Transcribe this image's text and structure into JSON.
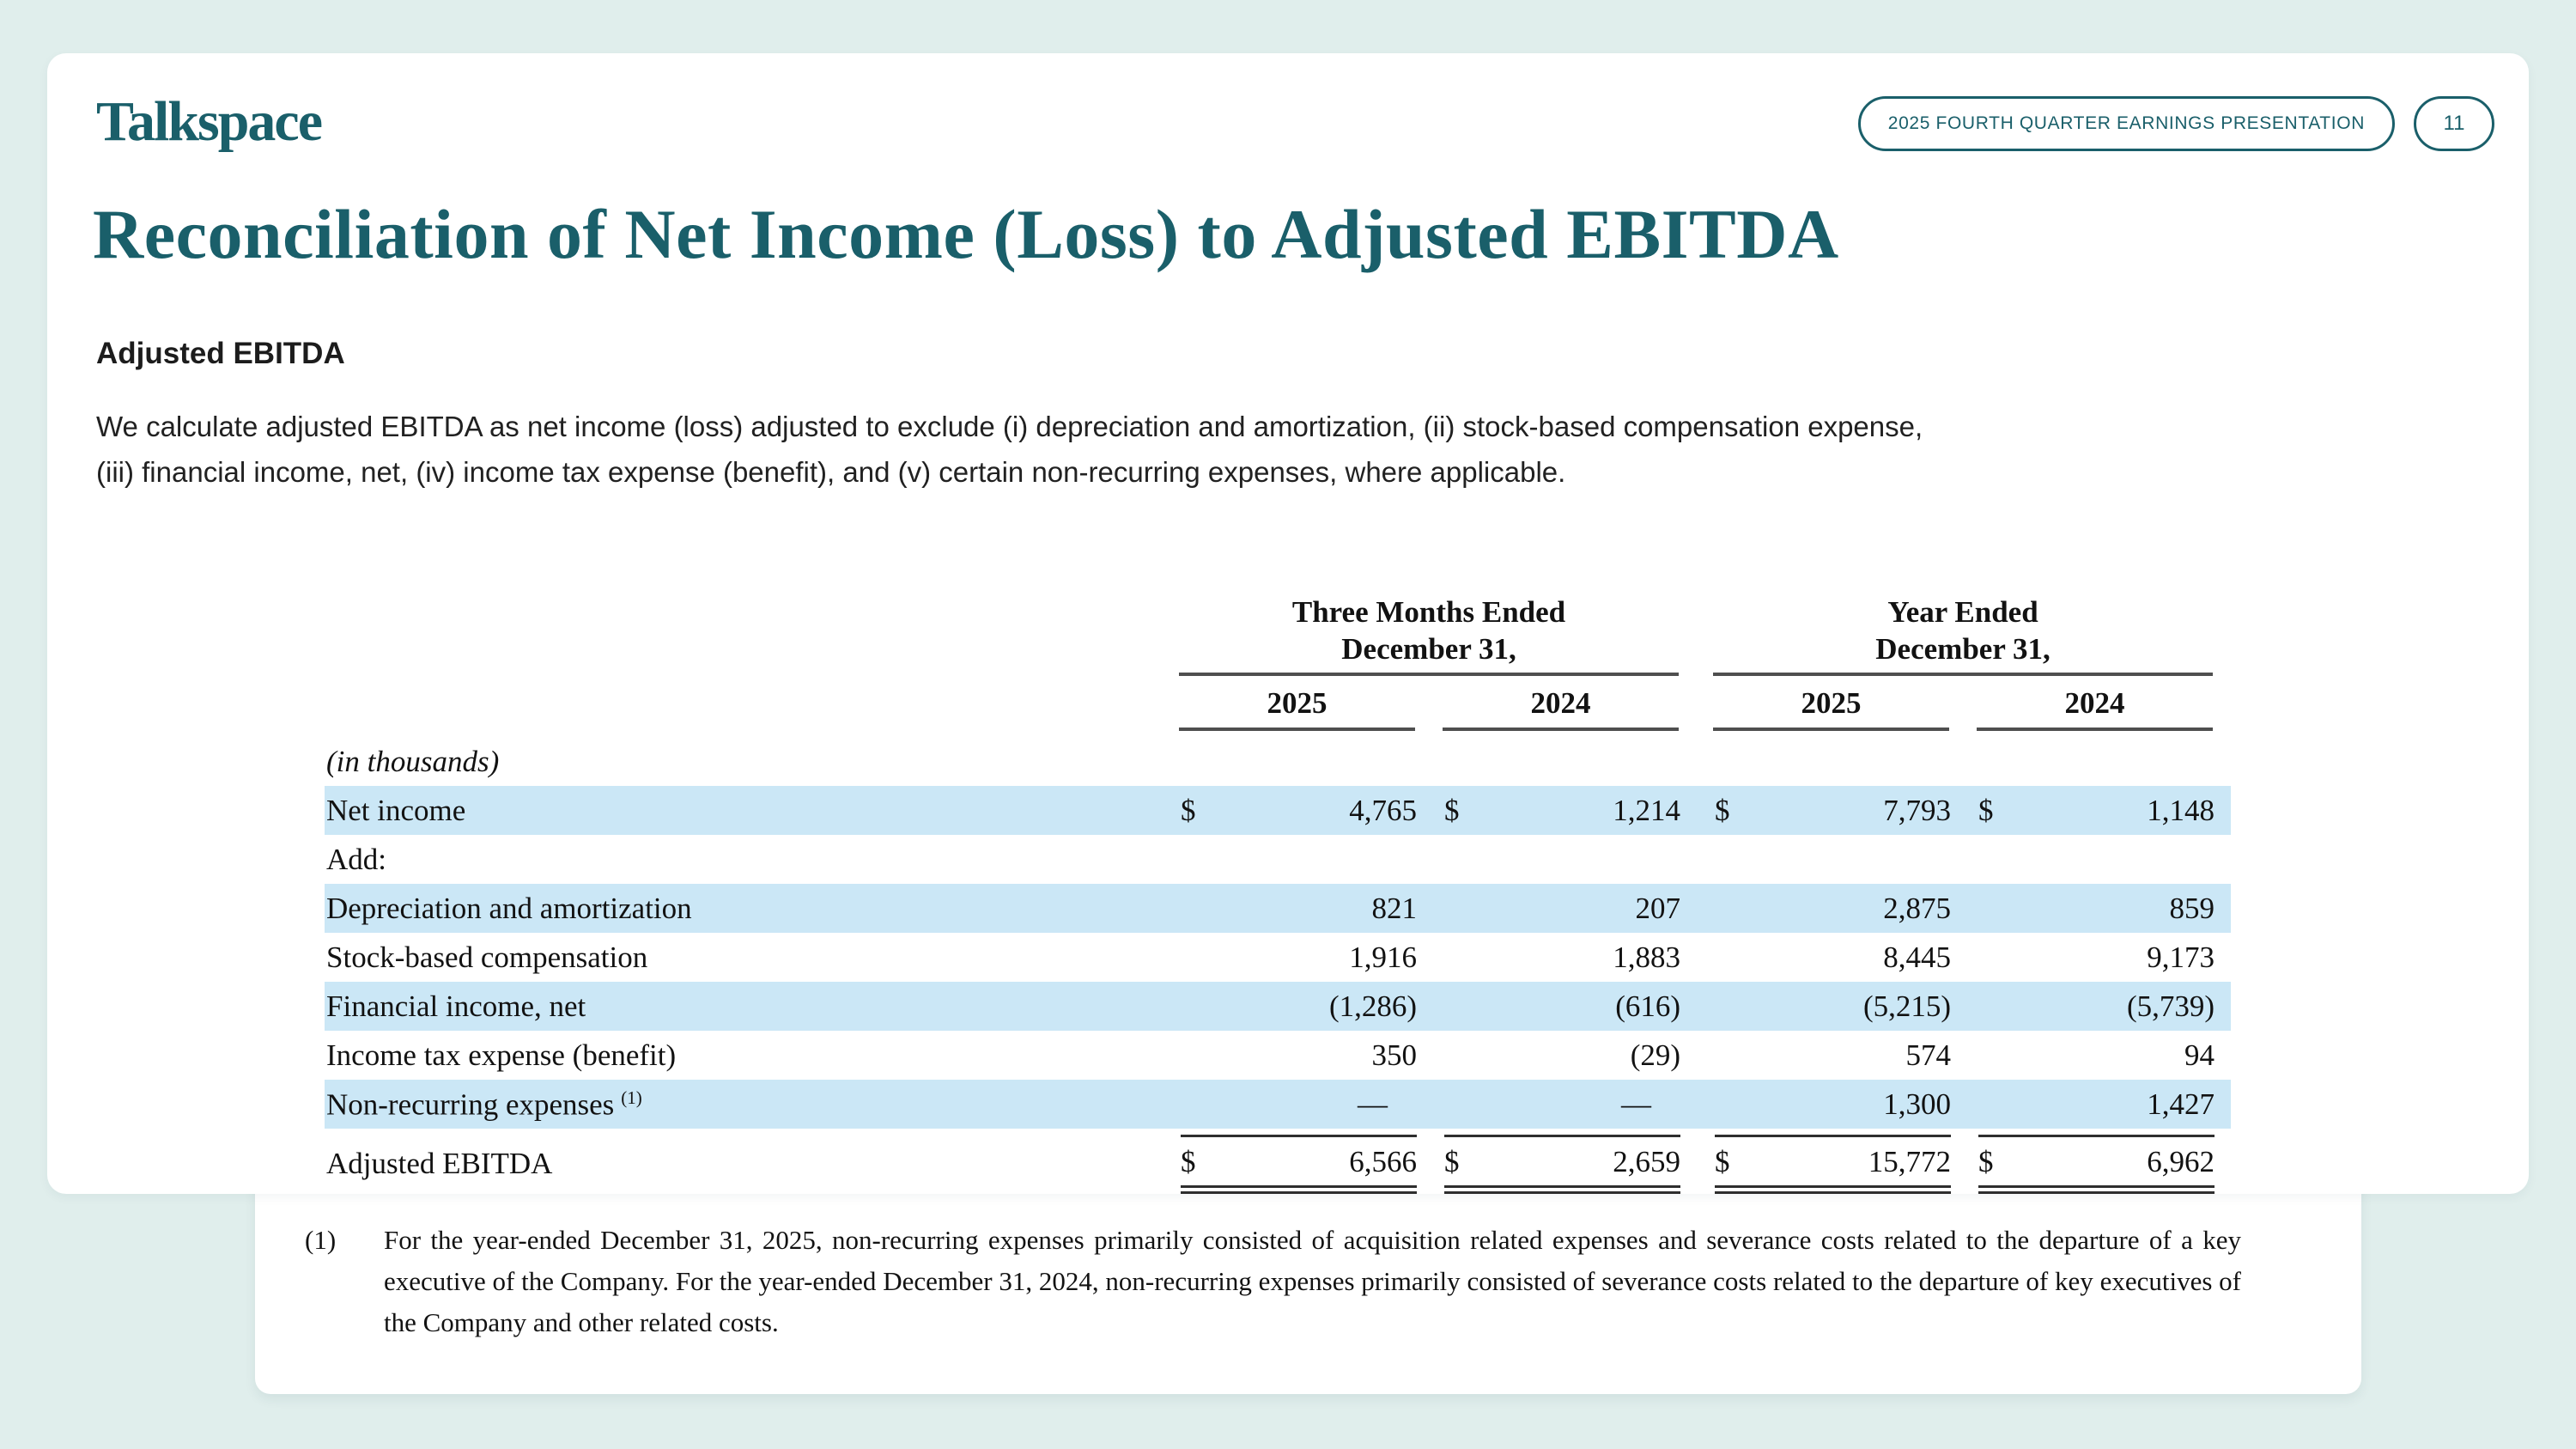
{
  "colors": {
    "background": "#e0eeec",
    "card": "#ffffff",
    "accent_teal": "#1a5f6a",
    "row_highlight_blue": "#cbe7f6"
  },
  "header": {
    "logo_text": "Talkspace",
    "presentation_badge": "2025 FOURTH QUARTER EARNINGS PRESENTATION",
    "page_number": "11"
  },
  "slide": {
    "title": "Reconciliation of Net Income (Loss) to Adjusted EBITDA",
    "section_heading": "Adjusted EBITDA",
    "body_lines": [
      "We calculate adjusted EBITDA as net income (loss) adjusted to exclude (i) depreciation and amortization, (ii) stock-based compensation expense,",
      "(iii) financial income, net, (iv) income tax expense (benefit), and (v) certain non-recurring expenses, where applicable."
    ]
  },
  "table": {
    "currency_symbol": "$",
    "unit_label": "(in thousands)",
    "column_groups": [
      {
        "line1": "Three Months Ended",
        "line2": "December 31,",
        "years": [
          "2025",
          "2024"
        ]
      },
      {
        "line1": "Year Ended",
        "line2": "December 31,",
        "years": [
          "2025",
          "2024"
        ]
      }
    ],
    "rows": [
      {
        "label": "Net income",
        "values": [
          "4,765",
          "1,214",
          "7,793",
          "1,148"
        ]
      },
      {
        "label": "Add:",
        "values": [
          "",
          "",
          "",
          ""
        ]
      },
      {
        "label": "Depreciation and amortization",
        "values": [
          "821",
          "207",
          "2,875",
          "859"
        ]
      },
      {
        "label": "Stock-based compensation",
        "values": [
          "1,916",
          "1,883",
          "8,445",
          "9,173"
        ]
      },
      {
        "label": "Financial income, net",
        "values": [
          "(1,286)",
          "(616)",
          "(5,215)",
          "(5,739)"
        ]
      },
      {
        "label": "Income tax expense (benefit)",
        "values": [
          "350",
          "(29)",
          "574",
          "94"
        ]
      },
      {
        "label": "Non-recurring expenses",
        "footnote_ref": "(1)",
        "values": [
          "—",
          "—",
          "1,300",
          "1,427"
        ]
      }
    ],
    "total_row": {
      "label": "Adjusted EBITDA",
      "values": [
        "6,566",
        "2,659",
        "15,772",
        "6,962"
      ]
    }
  },
  "footnote": {
    "marker": "(1)",
    "text": "For the year-ended December 31, 2025, non-recurring expenses primarily consisted of acquisition related expenses and severance costs related to the departure of a key executive of the Company. For the year-ended December 31, 2024, non-recurring expenses primarily consisted of severance costs related to the departure of key executives of the Company and other related costs."
  }
}
